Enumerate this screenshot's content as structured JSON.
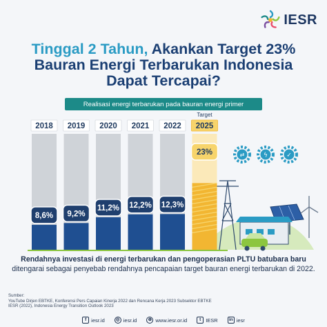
{
  "brand": {
    "name": "IESR"
  },
  "title": {
    "part1": "Tinggal 2 Tahun,",
    "part2": " Akankan Target 23%",
    "line2": "Bauran Energi Terbarukan Indonesia",
    "line3": "Dapat Tercapai?"
  },
  "colors": {
    "navy": "#1b3f73",
    "teal": "#1c8a88",
    "accent_blue": "#2a9bc4",
    "bar_fill": "#1f4f91",
    "bar_track": "#cfd3d8",
    "target_fill": "#f2b632",
    "label_box": "#1f3f6e",
    "target_label_box": "#f7d46b"
  },
  "chart_data": {
    "type": "bar",
    "title": "Realisasi energi terbarukan pada bauran energi primer",
    "categories": [
      "2018",
      "2019",
      "2020",
      "2021",
      "2022",
      "2025"
    ],
    "values": [
      8.6,
      9.2,
      11.2,
      12.2,
      12.3,
      23
    ],
    "value_labels": [
      "8,6%",
      "9,2%",
      "11,2%",
      "12,2%",
      "12,3%",
      "23%"
    ],
    "target_category": "2025",
    "target_label": "Target",
    "ylim": [
      0,
      40
    ]
  },
  "caption": {
    "bold": "Rendahnya investasi di energi terbarukan dan pengoperasian PLTU batubara baru",
    "rest": "ditengarai sebagai penyebab rendahnya pencapaian target bauran energi terbarukan di 2022."
  },
  "sources": {
    "heading": "Sumber:",
    "line1": "YouTube Dirjen EBTKE, Konferensi Pers Capaian Kinerja 2022 dan Rencana Kerja 2023 Subsektor EBTKE",
    "line2": "IESR (2022), Indonesia Energy Transition Outlook 2023"
  },
  "footer": [
    {
      "icon": "facebook-icon",
      "glyph": "f",
      "text": "iesr.id"
    },
    {
      "icon": "instagram-icon",
      "glyph": "◎",
      "text": "iesr.id"
    },
    {
      "icon": "globe-icon",
      "glyph": "⊕",
      "text": "www.iesr.or.id"
    },
    {
      "icon": "twitter-icon",
      "glyph": "t",
      "text": "IESR"
    },
    {
      "icon": "linkedin-icon",
      "glyph": "in",
      "text": "iesr"
    }
  ]
}
